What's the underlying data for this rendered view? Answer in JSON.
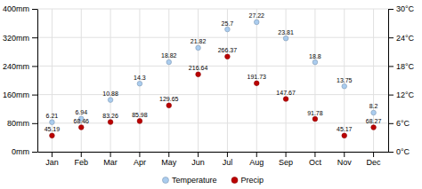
{
  "chart_data": {
    "type": "scatter",
    "categories": [
      "Jan",
      "Feb",
      "Mar",
      "Apr",
      "May",
      "Jun",
      "Jul",
      "Aug",
      "Sep",
      "Oct",
      "Nov",
      "Dec"
    ],
    "series": [
      {
        "name": "Temperature",
        "color": "#aaccee",
        "axis": "y2",
        "values": [
          6.21,
          6.94,
          10.88,
          14.3,
          18.82,
          21.82,
          25.7,
          27.22,
          23.81,
          18.8,
          13.75,
          8.2
        ]
      },
      {
        "name": "Precip",
        "color": "#bb0000",
        "values": [
          45.19,
          68.46,
          83.26,
          85.98,
          129.65,
          216.64,
          266.37,
          191.73,
          147.67,
          91.78,
          45.17,
          68.27
        ]
      }
    ],
    "ylim": [
      0,
      400
    ],
    "yticks": [
      {
        "value": 0,
        "label": "0mm"
      },
      {
        "value": 80,
        "label": "80mm"
      },
      {
        "value": 160,
        "label": "160mm"
      },
      {
        "value": 240,
        "label": "240mm"
      },
      {
        "value": 320,
        "label": "320mm"
      },
      {
        "value": 400,
        "label": "400mm"
      }
    ],
    "y2lim": [
      0,
      30
    ],
    "y2ticks": [
      {
        "value": 0,
        "label": "0°C"
      },
      {
        "value": 6,
        "label": "6°C"
      },
      {
        "value": 12,
        "label": "12°C"
      },
      {
        "value": 18,
        "label": "18°C"
      },
      {
        "value": 24,
        "label": "24°C"
      },
      {
        "value": 30,
        "label": "30°C"
      }
    ],
    "grid": true,
    "data_labels": true,
    "legend": "bottom"
  }
}
